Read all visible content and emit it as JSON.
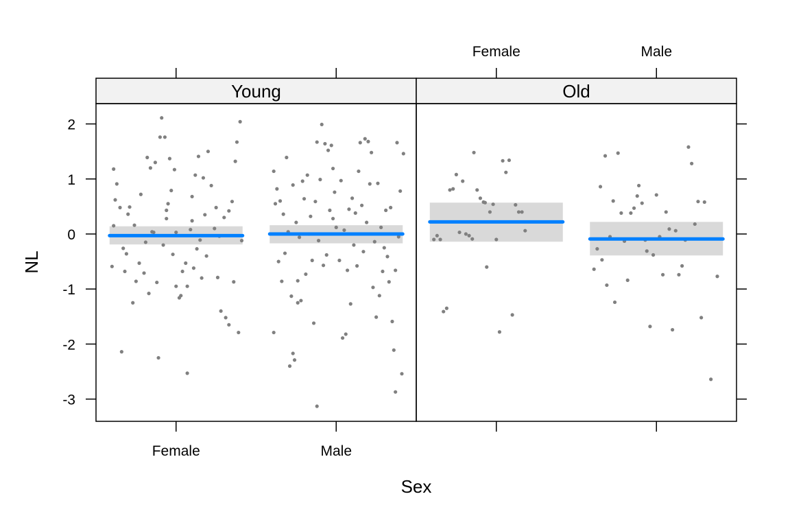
{
  "chart_data": {
    "type": "scatter",
    "xlabel": "Sex",
    "ylabel": "NL",
    "ylim": [
      -3.4,
      2.35
    ],
    "yticks": [
      2,
      1,
      0,
      -1,
      -2,
      -3
    ],
    "ytick_labels": [
      "2",
      "1",
      "0",
      "-1",
      "-2",
      "-3"
    ],
    "categories": [
      "Female",
      "Male"
    ],
    "colors": {
      "points": "#808080",
      "fit": "#0080ff",
      "band": "#d9d9d9",
      "strip": "#f2f2f2",
      "frame": "#000000"
    },
    "panels": [
      {
        "strip": "Young",
        "groups": [
          {
            "category": "Female",
            "fit": -0.03,
            "lower": -0.19,
            "upper": 0.14,
            "points": [
              [
                -0.39,
                1.18
              ],
              [
                -0.37,
                0.91
              ],
              [
                -0.38,
                0.62
              ],
              [
                -0.35,
                0.48
              ],
              [
                -0.39,
                0.15
              ],
              [
                -0.33,
                -0.26
              ],
              [
                -0.31,
                -0.36
              ],
              [
                -0.4,
                -0.59
              ],
              [
                -0.32,
                -0.68
              ],
              [
                -0.34,
                -2.14
              ],
              [
                -0.27,
                -1.25
              ],
              [
                -0.25,
                -0.86
              ],
              [
                -0.29,
                0.49
              ],
              [
                -0.22,
                0.72
              ],
              [
                -0.19,
                -0.15
              ],
              [
                -0.16,
                1.2
              ],
              [
                -0.13,
                1.3
              ],
              [
                -0.1,
                1.76
              ],
              [
                -0.07,
                1.76
              ],
              [
                -0.09,
                2.11
              ],
              [
                -0.05,
                0.55
              ],
              [
                -0.03,
                0.79
              ],
              [
                -0.01,
                1.17
              ],
              [
                -0.17,
                -1.08
              ],
              [
                -0.12,
                -0.88
              ],
              [
                -0.06,
                0.28
              ],
              [
                0.0,
                -0.95
              ],
              [
                0.03,
                -1.12
              ],
              [
                0.06,
                -0.53
              ],
              [
                0.09,
                0.08
              ],
              [
                0.1,
                0.68
              ],
              [
                0.12,
                1.07
              ],
              [
                0.14,
                1.41
              ],
              [
                0.17,
                1.02
              ],
              [
                0.2,
                1.5
              ],
              [
                0.22,
                0.88
              ],
              [
                0.24,
                0.1
              ],
              [
                0.26,
                -0.79
              ],
              [
                0.28,
                -1.4
              ],
              [
                0.31,
                -1.52
              ],
              [
                0.33,
                -1.65
              ],
              [
                0.35,
                0.59
              ],
              [
                0.37,
                1.32
              ],
              [
                0.38,
                1.67
              ],
              [
                0.4,
                2.04
              ],
              [
                0.41,
                -0.12
              ],
              [
                0.36,
                -0.87
              ],
              [
                0.39,
                -1.79
              ],
              [
                0.3,
                0.3
              ],
              [
                0.25,
                0.48
              ],
              [
                0.19,
                -0.4
              ],
              [
                0.15,
                -0.11
              ],
              [
                0.11,
                -0.62
              ],
              [
                0.07,
                -0.95
              ],
              [
                0.04,
                -0.68
              ],
              [
                0.02,
                -1.16
              ],
              [
                -0.02,
                -0.37
              ],
              [
                -0.08,
                -0.2
              ],
              [
                -0.14,
                0.03
              ],
              [
                -0.2,
                -0.71
              ],
              [
                -0.23,
                -0.53
              ],
              [
                -0.26,
                0.16
              ],
              [
                -0.11,
                -2.25
              ],
              [
                0.07,
                -2.53
              ],
              [
                -0.04,
                1.37
              ],
              [
                -0.06,
                0.43
              ],
              [
                0.13,
                -0.27
              ],
              [
                0.18,
                0.35
              ],
              [
                0.27,
                -0.04
              ],
              [
                0.33,
                0.42
              ],
              [
                0.0,
                0.03
              ],
              [
                -0.3,
                0.36
              ],
              [
                0.16,
                -0.8
              ],
              [
                0.1,
                0.24
              ],
              [
                -0.18,
                1.39
              ],
              [
                -0.15,
                0.04
              ]
            ]
          },
          {
            "category": "Male",
            "fit": 0.0,
            "lower": -0.17,
            "upper": 0.16,
            "points": [
              [
                -0.39,
                1.14
              ],
              [
                -0.37,
                0.82
              ],
              [
                -0.35,
                0.6
              ],
              [
                -0.38,
                0.55
              ],
              [
                -0.39,
                -1.79
              ],
              [
                -0.34,
                -0.86
              ],
              [
                -0.32,
                -0.35
              ],
              [
                -0.3,
                0.04
              ],
              [
                -0.28,
                -1.13
              ],
              [
                -0.27,
                -2.17
              ],
              [
                -0.26,
                -2.29
              ],
              [
                -0.29,
                -2.4
              ],
              [
                -0.22,
                -1.21
              ],
              [
                -0.21,
                0.96
              ],
              [
                -0.18,
                1.07
              ],
              [
                -0.16,
                0.32
              ],
              [
                -0.14,
                -1.62
              ],
              [
                -0.12,
                1.67
              ],
              [
                -0.09,
                1.99
              ],
              [
                -0.07,
                1.64
              ],
              [
                -0.05,
                1.52
              ],
              [
                -0.03,
                1.61
              ],
              [
                -0.01,
                0.76
              ],
              [
                0.0,
                0.12
              ],
              [
                0.02,
                -0.48
              ],
              [
                0.04,
                -1.89
              ],
              [
                0.06,
                -1.82
              ],
              [
                0.08,
                0.45
              ],
              [
                0.1,
                0.65
              ],
              [
                0.12,
                0.38
              ],
              [
                0.15,
                1.66
              ],
              [
                0.18,
                1.73
              ],
              [
                0.2,
                1.68
              ],
              [
                0.21,
                0.91
              ],
              [
                0.23,
                -0.97
              ],
              [
                0.25,
                -1.51
              ],
              [
                0.27,
                -1.12
              ],
              [
                0.29,
                -0.68
              ],
              [
                0.31,
                0.43
              ],
              [
                0.33,
                -0.87
              ],
              [
                0.35,
                -1.59
              ],
              [
                0.36,
                -2.11
              ],
              [
                0.37,
                -2.87
              ],
              [
                0.38,
                1.66
              ],
              [
                0.4,
                0.78
              ],
              [
                0.41,
                -2.54
              ],
              [
                0.42,
                1.46
              ],
              [
                0.39,
                -0.05
              ],
              [
                0.34,
                0.48
              ],
              [
                0.3,
                -0.25
              ],
              [
                0.26,
                0.92
              ],
              [
                0.22,
                1.48
              ],
              [
                0.19,
                0.21
              ],
              [
                0.16,
                0.52
              ],
              [
                0.13,
                -0.58
              ],
              [
                0.11,
                -0.2
              ],
              [
                0.07,
                -0.66
              ],
              [
                0.05,
                0.07
              ],
              [
                0.03,
                0.97
              ],
              [
                -0.02,
                1.19
              ],
              [
                -0.04,
                0.43
              ],
              [
                -0.06,
                -0.38
              ],
              [
                -0.08,
                -0.57
              ],
              [
                -0.1,
                0.99
              ],
              [
                -0.11,
                -0.12
              ],
              [
                -0.13,
                0.59
              ],
              [
                -0.15,
                -0.48
              ],
              [
                -0.17,
                0.0
              ],
              [
                -0.19,
                -0.73
              ],
              [
                -0.2,
                0.64
              ],
              [
                -0.23,
                -0.06
              ],
              [
                -0.25,
                0.21
              ],
              [
                -0.27,
                0.89
              ],
              [
                -0.31,
                1.39
              ],
              [
                -0.33,
                0.36
              ],
              [
                -0.36,
                -0.5
              ],
              [
                -0.24,
                -0.85
              ],
              [
                -0.02,
                0.28
              ],
              [
                0.09,
                -1.27
              ],
              [
                0.14,
                1.14
              ],
              [
                0.17,
                -0.32
              ],
              [
                0.24,
                -0.14
              ],
              [
                0.28,
                0.12
              ],
              [
                0.32,
                -0.41
              ],
              [
                0.37,
                -0.66
              ],
              [
                -0.24,
                -1.25
              ],
              [
                -0.12,
                -3.13
              ]
            ]
          }
        ]
      },
      {
        "strip": "Old",
        "groups": [
          {
            "category": "Female",
            "fit": 0.22,
            "lower": -0.14,
            "upper": 0.57,
            "points": [
              [
                -0.39,
                -0.1
              ],
              [
                -0.37,
                -0.03
              ],
              [
                -0.35,
                -0.1
              ],
              [
                -0.33,
                -1.41
              ],
              [
                -0.31,
                -1.35
              ],
              [
                -0.29,
                0.8
              ],
              [
                -0.27,
                0.82
              ],
              [
                -0.25,
                1.08
              ],
              [
                -0.23,
                0.03
              ],
              [
                -0.21,
                0.96
              ],
              [
                -0.19,
                0.0
              ],
              [
                -0.17,
                -0.03
              ],
              [
                -0.15,
                -0.09
              ],
              [
                -0.14,
                1.48
              ],
              [
                -0.12,
                0.8
              ],
              [
                -0.1,
                0.65
              ],
              [
                -0.08,
                0.58
              ],
              [
                -0.07,
                0.57
              ],
              [
                -0.06,
                -0.6
              ],
              [
                -0.04,
                0.4
              ],
              [
                -0.02,
                0.54
              ],
              [
                0.0,
                -0.1
              ],
              [
                0.02,
                -1.78
              ],
              [
                0.04,
                1.33
              ],
              [
                0.06,
                1.12
              ],
              [
                0.08,
                1.34
              ],
              [
                0.1,
                -1.47
              ],
              [
                0.12,
                0.53
              ],
              [
                0.14,
                0.4
              ],
              [
                0.16,
                0.4
              ],
              [
                0.18,
                0.06
              ]
            ]
          },
          {
            "category": "Male",
            "fit": -0.09,
            "lower": -0.39,
            "upper": 0.22,
            "points": [
              [
                -0.39,
                -0.64
              ],
              [
                -0.37,
                -0.27
              ],
              [
                -0.35,
                0.86
              ],
              [
                -0.34,
                -0.47
              ],
              [
                -0.32,
                1.42
              ],
              [
                -0.31,
                -0.93
              ],
              [
                -0.29,
                -0.05
              ],
              [
                -0.27,
                0.6
              ],
              [
                -0.26,
                -1.24
              ],
              [
                -0.24,
                1.47
              ],
              [
                -0.22,
                0.38
              ],
              [
                -0.2,
                -0.13
              ],
              [
                -0.18,
                -0.84
              ],
              [
                -0.16,
                0.38
              ],
              [
                -0.14,
                0.47
              ],
              [
                -0.12,
                0.69
              ],
              [
                -0.11,
                0.88
              ],
              [
                -0.09,
                0.56
              ],
              [
                -0.07,
                -0.11
              ],
              [
                -0.06,
                -0.31
              ],
              [
                -0.04,
                -1.68
              ],
              [
                -0.02,
                -0.38
              ],
              [
                0.0,
                0.71
              ],
              [
                0.02,
                -0.05
              ],
              [
                0.04,
                -0.74
              ],
              [
                0.06,
                0.4
              ],
              [
                0.08,
                0.09
              ],
              [
                0.1,
                -1.74
              ],
              [
                0.12,
                0.06
              ],
              [
                0.14,
                -0.74
              ],
              [
                0.16,
                -0.58
              ],
              [
                0.18,
                -0.11
              ],
              [
                0.2,
                1.58
              ],
              [
                0.22,
                1.28
              ],
              [
                0.24,
                0.18
              ],
              [
                0.26,
                0.59
              ],
              [
                0.28,
                -1.52
              ],
              [
                0.3,
                0.58
              ],
              [
                0.34,
                -2.64
              ],
              [
                0.38,
                -0.77
              ]
            ]
          }
        ]
      }
    ]
  }
}
